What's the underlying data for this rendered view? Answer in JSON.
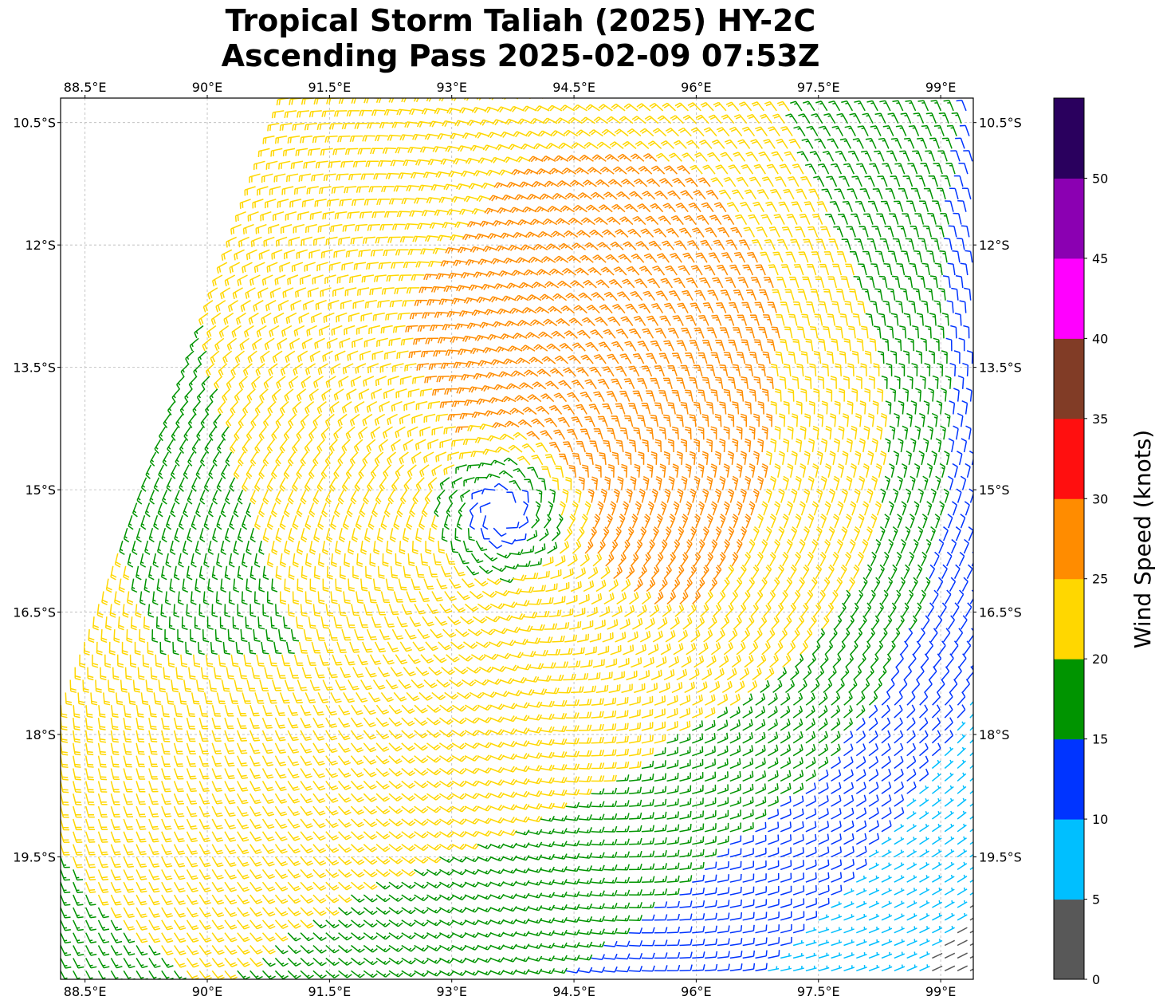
{
  "title": {
    "line1": "Tropical Storm Taliah (2025) HY-2C",
    "line2": "Ascending Pass 2025-02-09 07:53Z"
  },
  "map": {
    "lon_range": [
      88.2,
      99.4
    ],
    "lat_range": [
      -21.0,
      -10.2
    ],
    "lon_ticks": [
      {
        "value": 88.5,
        "label": "88.5°E"
      },
      {
        "value": 90.0,
        "label": "90°E"
      },
      {
        "value": 91.5,
        "label": "91.5°E"
      },
      {
        "value": 93.0,
        "label": "93°E"
      },
      {
        "value": 94.5,
        "label": "94.5°E"
      },
      {
        "value": 96.0,
        "label": "96°E"
      },
      {
        "value": 97.5,
        "label": "97.5°E"
      },
      {
        "value": 99.0,
        "label": "99°E"
      }
    ],
    "lat_ticks": [
      {
        "value": -10.5,
        "label": "10.5°S"
      },
      {
        "value": -12.0,
        "label": "12°S"
      },
      {
        "value": -13.5,
        "label": "13.5°S"
      },
      {
        "value": -15.0,
        "label": "15°S"
      },
      {
        "value": -16.5,
        "label": "16.5°S"
      },
      {
        "value": -18.0,
        "label": "18°S"
      },
      {
        "value": -19.5,
        "label": "19.5°S"
      }
    ],
    "grid": true,
    "storm_center": {
      "lon": 93.6,
      "lat": -15.3
    },
    "swath_edge_west_lon_north": 91.0,
    "swath_edge_west_lon_south": 88.2
  },
  "colorbar": {
    "label": "Wind Speed (knots)",
    "range": [
      0,
      55
    ],
    "bins": [
      {
        "from": 0,
        "to": 5,
        "color": "#585858"
      },
      {
        "from": 5,
        "to": 10,
        "color": "#00bfff"
      },
      {
        "from": 10,
        "to": 15,
        "color": "#0034ff"
      },
      {
        "from": 15,
        "to": 20,
        "color": "#009400"
      },
      {
        "from": 20,
        "to": 25,
        "color": "#ffd700"
      },
      {
        "from": 25,
        "to": 30,
        "color": "#ff8c00"
      },
      {
        "from": 30,
        "to": 35,
        "color": "#ff0f0f"
      },
      {
        "from": 35,
        "to": 40,
        "color": "#813c26"
      },
      {
        "from": 40,
        "to": 45,
        "color": "#ff00ff"
      },
      {
        "from": 45,
        "to": 50,
        "color": "#8b00b2"
      },
      {
        "from": 50,
        "to": 55,
        "color": "#2a005e"
      }
    ],
    "ticks": [
      {
        "value": 0,
        "label": "0"
      },
      {
        "value": 5,
        "label": "5"
      },
      {
        "value": 10,
        "label": "10"
      },
      {
        "value": 15,
        "label": "15"
      },
      {
        "value": 20,
        "label": "20"
      },
      {
        "value": 25,
        "label": "25"
      },
      {
        "value": 30,
        "label": "30"
      },
      {
        "value": 35,
        "label": "35"
      },
      {
        "value": 40,
        "label": "40"
      },
      {
        "value": 45,
        "label": "45"
      },
      {
        "value": 50,
        "label": "50"
      }
    ]
  }
}
